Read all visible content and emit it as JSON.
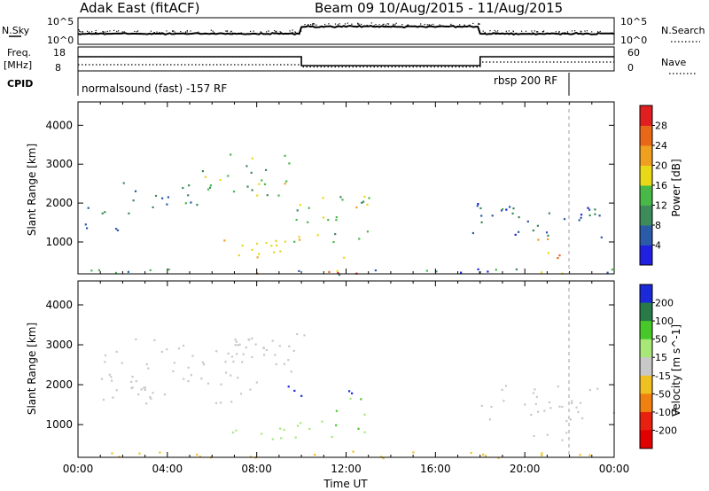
{
  "header": {
    "station": "Adak East (fitACF)",
    "beam_dates": "Beam 09  10/Aug/2015 - 11/Aug/2015"
  },
  "top_strip": {
    "nsky_label": "N.Sky",
    "nsky_ticks": [
      "10^5",
      "10^0"
    ],
    "nsearch_label": "N.Search",
    "nsearch_ticks": [
      "10^5",
      "10^0"
    ],
    "freq_label": "Freq.",
    "freq_unit": "[MHz]",
    "freq_ticks": [
      "18",
      "8"
    ],
    "nave_label": "Nave",
    "nave_ticks": [
      "60",
      "0"
    ],
    "cpid_label": "CPID",
    "cpid_left": "normalsound (fast) -157 RF",
    "cpid_right": "rbsp 200 RF"
  },
  "chart_data": [
    {
      "type": "heatmap",
      "title": "",
      "xlabel": "",
      "ylabel": "Slant Range [km]",
      "xlim": [
        "00:00",
        "00:00"
      ],
      "ylim": [
        180,
        4600
      ],
      "x_tick_labels": [
        "00:00",
        "04:00",
        "08:00",
        "12:00",
        "16:00",
        "20:00",
        "00:00"
      ],
      "y_tick_labels": [
        "1000",
        "2000",
        "3000",
        "4000"
      ],
      "colorbar": {
        "label": "Power [dB]",
        "ticks": [
          "4",
          "8",
          "12",
          "16",
          "20",
          "24",
          "28"
        ],
        "colors": [
          "#2020e0",
          "#2a5aa8",
          "#3d8a5a",
          "#48b848",
          "#e8d818",
          "#f0a020",
          "#e86818",
          "#e02020"
        ]
      },
      "regions": [
        {
          "t0": 0.0,
          "t1": 24.0,
          "r0": 180,
          "r1": 350,
          "value": 10,
          "spread": 14
        },
        {
          "t0": 6.0,
          "t1": 13.0,
          "r0": 180,
          "r1": 300,
          "value": 27,
          "spread": 4
        },
        {
          "t0": 6.5,
          "t1": 12.5,
          "r0": 600,
          "r1": 1100,
          "value": 19,
          "spread": 8
        },
        {
          "t0": 0.0,
          "t1": 2.5,
          "r0": 1300,
          "r1": 1900,
          "value": 8,
          "spread": 6
        },
        {
          "t0": 2.0,
          "t1": 6.0,
          "r0": 1900,
          "r1": 2600,
          "value": 10,
          "spread": 6
        },
        {
          "t0": 5.5,
          "t1": 9.5,
          "r0": 2200,
          "r1": 3300,
          "value": 14,
          "spread": 8
        },
        {
          "t0": 9.5,
          "t1": 13.0,
          "r0": 1000,
          "r1": 2300,
          "value": 15,
          "spread": 9
        },
        {
          "t0": 17.5,
          "t1": 21.5,
          "r0": 1100,
          "r1": 2100,
          "value": 9,
          "spread": 7
        },
        {
          "t0": 20.0,
          "t1": 21.8,
          "r0": 600,
          "r1": 1100,
          "value": 20,
          "spread": 6
        },
        {
          "t0": 21.5,
          "t1": 24.0,
          "r0": 1100,
          "r1": 1900,
          "value": 8,
          "spread": 6
        }
      ]
    },
    {
      "type": "heatmap",
      "title": "",
      "xlabel": "Time UT",
      "ylabel": "Slant Range [km]",
      "xlim": [
        "00:00",
        "00:00"
      ],
      "ylim": [
        180,
        4600
      ],
      "x_tick_labels": [
        "00:00",
        "04:00",
        "08:00",
        "12:00",
        "16:00",
        "20:00",
        "00:00"
      ],
      "y_tick_labels": [
        "1000",
        "2000",
        "3000",
        "4000"
      ],
      "colorbar": {
        "label": "Velocity [m s^-1]",
        "ticks": [
          "200",
          "100",
          "50",
          "15",
          "-15",
          "-50",
          "-100",
          "-200"
        ],
        "colors": [
          "#1a2ad8",
          "#287a48",
          "#48c828",
          "#a8e878",
          "#c8c8c8",
          "#f0c020",
          "#f08010",
          "#e82010",
          "#e00000"
        ]
      },
      "regions": [
        {
          "t0": 0.0,
          "t1": 24.0,
          "r0": 180,
          "r1": 350,
          "value": -50,
          "spread": 20
        },
        {
          "t0": 0.5,
          "t1": 8.0,
          "r0": 1500,
          "r1": 3200,
          "value": -10,
          "spread": 8
        },
        {
          "t0": 7.0,
          "t1": 10.5,
          "r0": 2300,
          "r1": 3300,
          "value": -10,
          "spread": 8
        },
        {
          "t0": 9.0,
          "t1": 12.5,
          "r0": 1700,
          "r1": 2000,
          "value": 180,
          "spread": 20
        },
        {
          "t0": 11.5,
          "t1": 13.0,
          "r0": 800,
          "r1": 1700,
          "value": 60,
          "spread": 15
        },
        {
          "t0": 6.5,
          "t1": 11.5,
          "r0": 600,
          "r1": 1100,
          "value": 30,
          "spread": 25
        },
        {
          "t0": 18.0,
          "t1": 24.0,
          "r0": 1100,
          "r1": 2000,
          "value": -10,
          "spread": 8
        },
        {
          "t0": 20.0,
          "t1": 22.0,
          "r0": 600,
          "r1": 1000,
          "value": -10,
          "spread": 8
        }
      ]
    }
  ]
}
